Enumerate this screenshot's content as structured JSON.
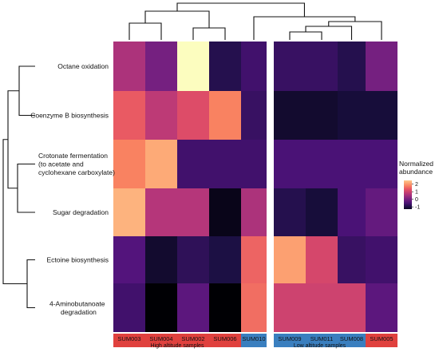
{
  "chart_data": {
    "type": "heatmap",
    "rows": [
      "Octane oxidation",
      "Coenzyme B biosynthesis",
      "Crotonate fermentation\n(to acetate and\ncyclohexane carboxylate)",
      "Sugar degradation",
      "Ectoine biosynthesis",
      "4-Aminobutanoate\ndegradation"
    ],
    "columns": [
      "SUM003",
      "SUM004",
      "SUM002",
      "SUM006",
      "SUM010",
      "SUM009",
      "SUM011",
      "SUM008",
      "SUM005"
    ],
    "column_groups": [
      {
        "label": "High altitude samples",
        "color": "#e0413e",
        "columns": [
          "SUM003",
          "SUM004",
          "SUM002",
          "SUM006"
        ]
      },
      {
        "label": "",
        "color": "#3a7fbf",
        "columns": [
          "SUM010"
        ]
      },
      {
        "label": "Low altitude samples",
        "color": "#3a7fbf",
        "columns": [
          "SUM009",
          "SUM011",
          "SUM008"
        ]
      },
      {
        "label": "",
        "color": "#e0413e",
        "columns": [
          "SUM005"
        ]
      }
    ],
    "values": [
      [
        0.6,
        0.0,
        3.0,
        -0.9,
        -0.6,
        -0.7,
        -0.7,
        -0.9,
        0.0
      ],
      [
        1.4,
        0.8,
        1.2,
        1.8,
        -0.7,
        -1.2,
        -1.2,
        -1.1,
        -1.1
      ],
      [
        1.8,
        2.2,
        -0.6,
        -0.6,
        -0.6,
        -0.5,
        -0.5,
        -0.5,
        -0.5
      ],
      [
        2.3,
        0.7,
        0.7,
        -1.4,
        0.6,
        -0.9,
        -1.1,
        -0.5,
        -0.2
      ],
      [
        -0.4,
        -1.2,
        -0.8,
        -1.0,
        1.5,
        2.1,
        1.1,
        -0.7,
        -0.6
      ],
      [
        -0.6,
        -1.6,
        -0.3,
        -1.6,
        1.6,
        1.0,
        1.0,
        1.0,
        -0.3
      ]
    ],
    "legend": {
      "title": "Normalized\nabundance",
      "ticks": [
        2,
        1,
        0,
        -1
      ],
      "range": [
        -1.6,
        3.0
      ]
    },
    "colors": {
      "low": "#000004",
      "high": "#fcfdbf",
      "high_group": "#e0413e",
      "low_group": "#3a7fbf"
    },
    "row_dendrogram": true,
    "column_dendrogram": true
  }
}
